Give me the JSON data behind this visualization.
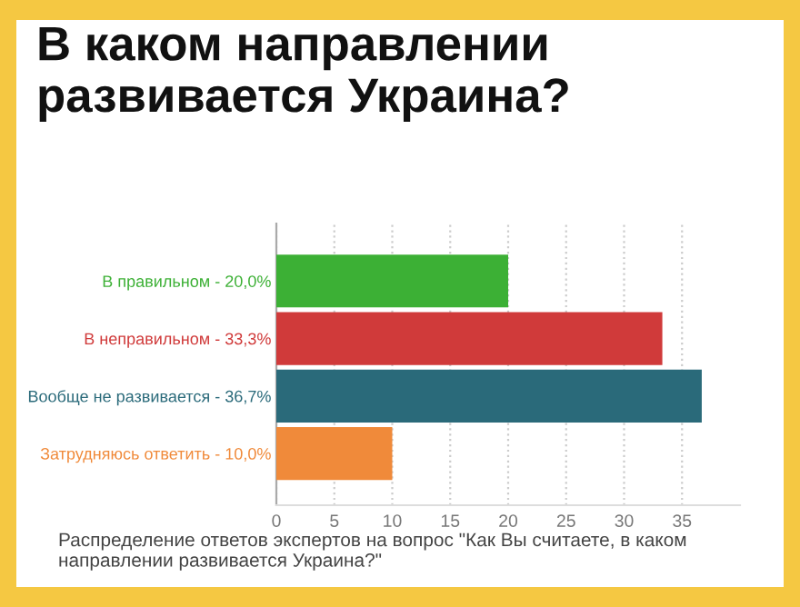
{
  "chart_data": {
    "type": "bar",
    "orientation": "horizontal",
    "title": "В каком направлении развивается Украина?",
    "categories": [
      "В правильном - 20,0%",
      "В неправильном - 33,3%",
      "Вообще не развивается - 36,7%",
      "Затрудняюсь ответить - 10,0%"
    ],
    "values": [
      20.0,
      33.3,
      36.7,
      10.0
    ],
    "colors": [
      "#3cb035",
      "#d03a3a",
      "#2a6a7a",
      "#f08a3a"
    ],
    "xlim": [
      0,
      40
    ],
    "xticks": [
      0,
      5,
      10,
      15,
      20,
      25,
      30,
      35
    ],
    "grid": "x",
    "annotations": [
      "Распределение ответов экспертов на вопрос \"Как Вы считаете, в каком направлении развивается Украина?\""
    ]
  }
}
